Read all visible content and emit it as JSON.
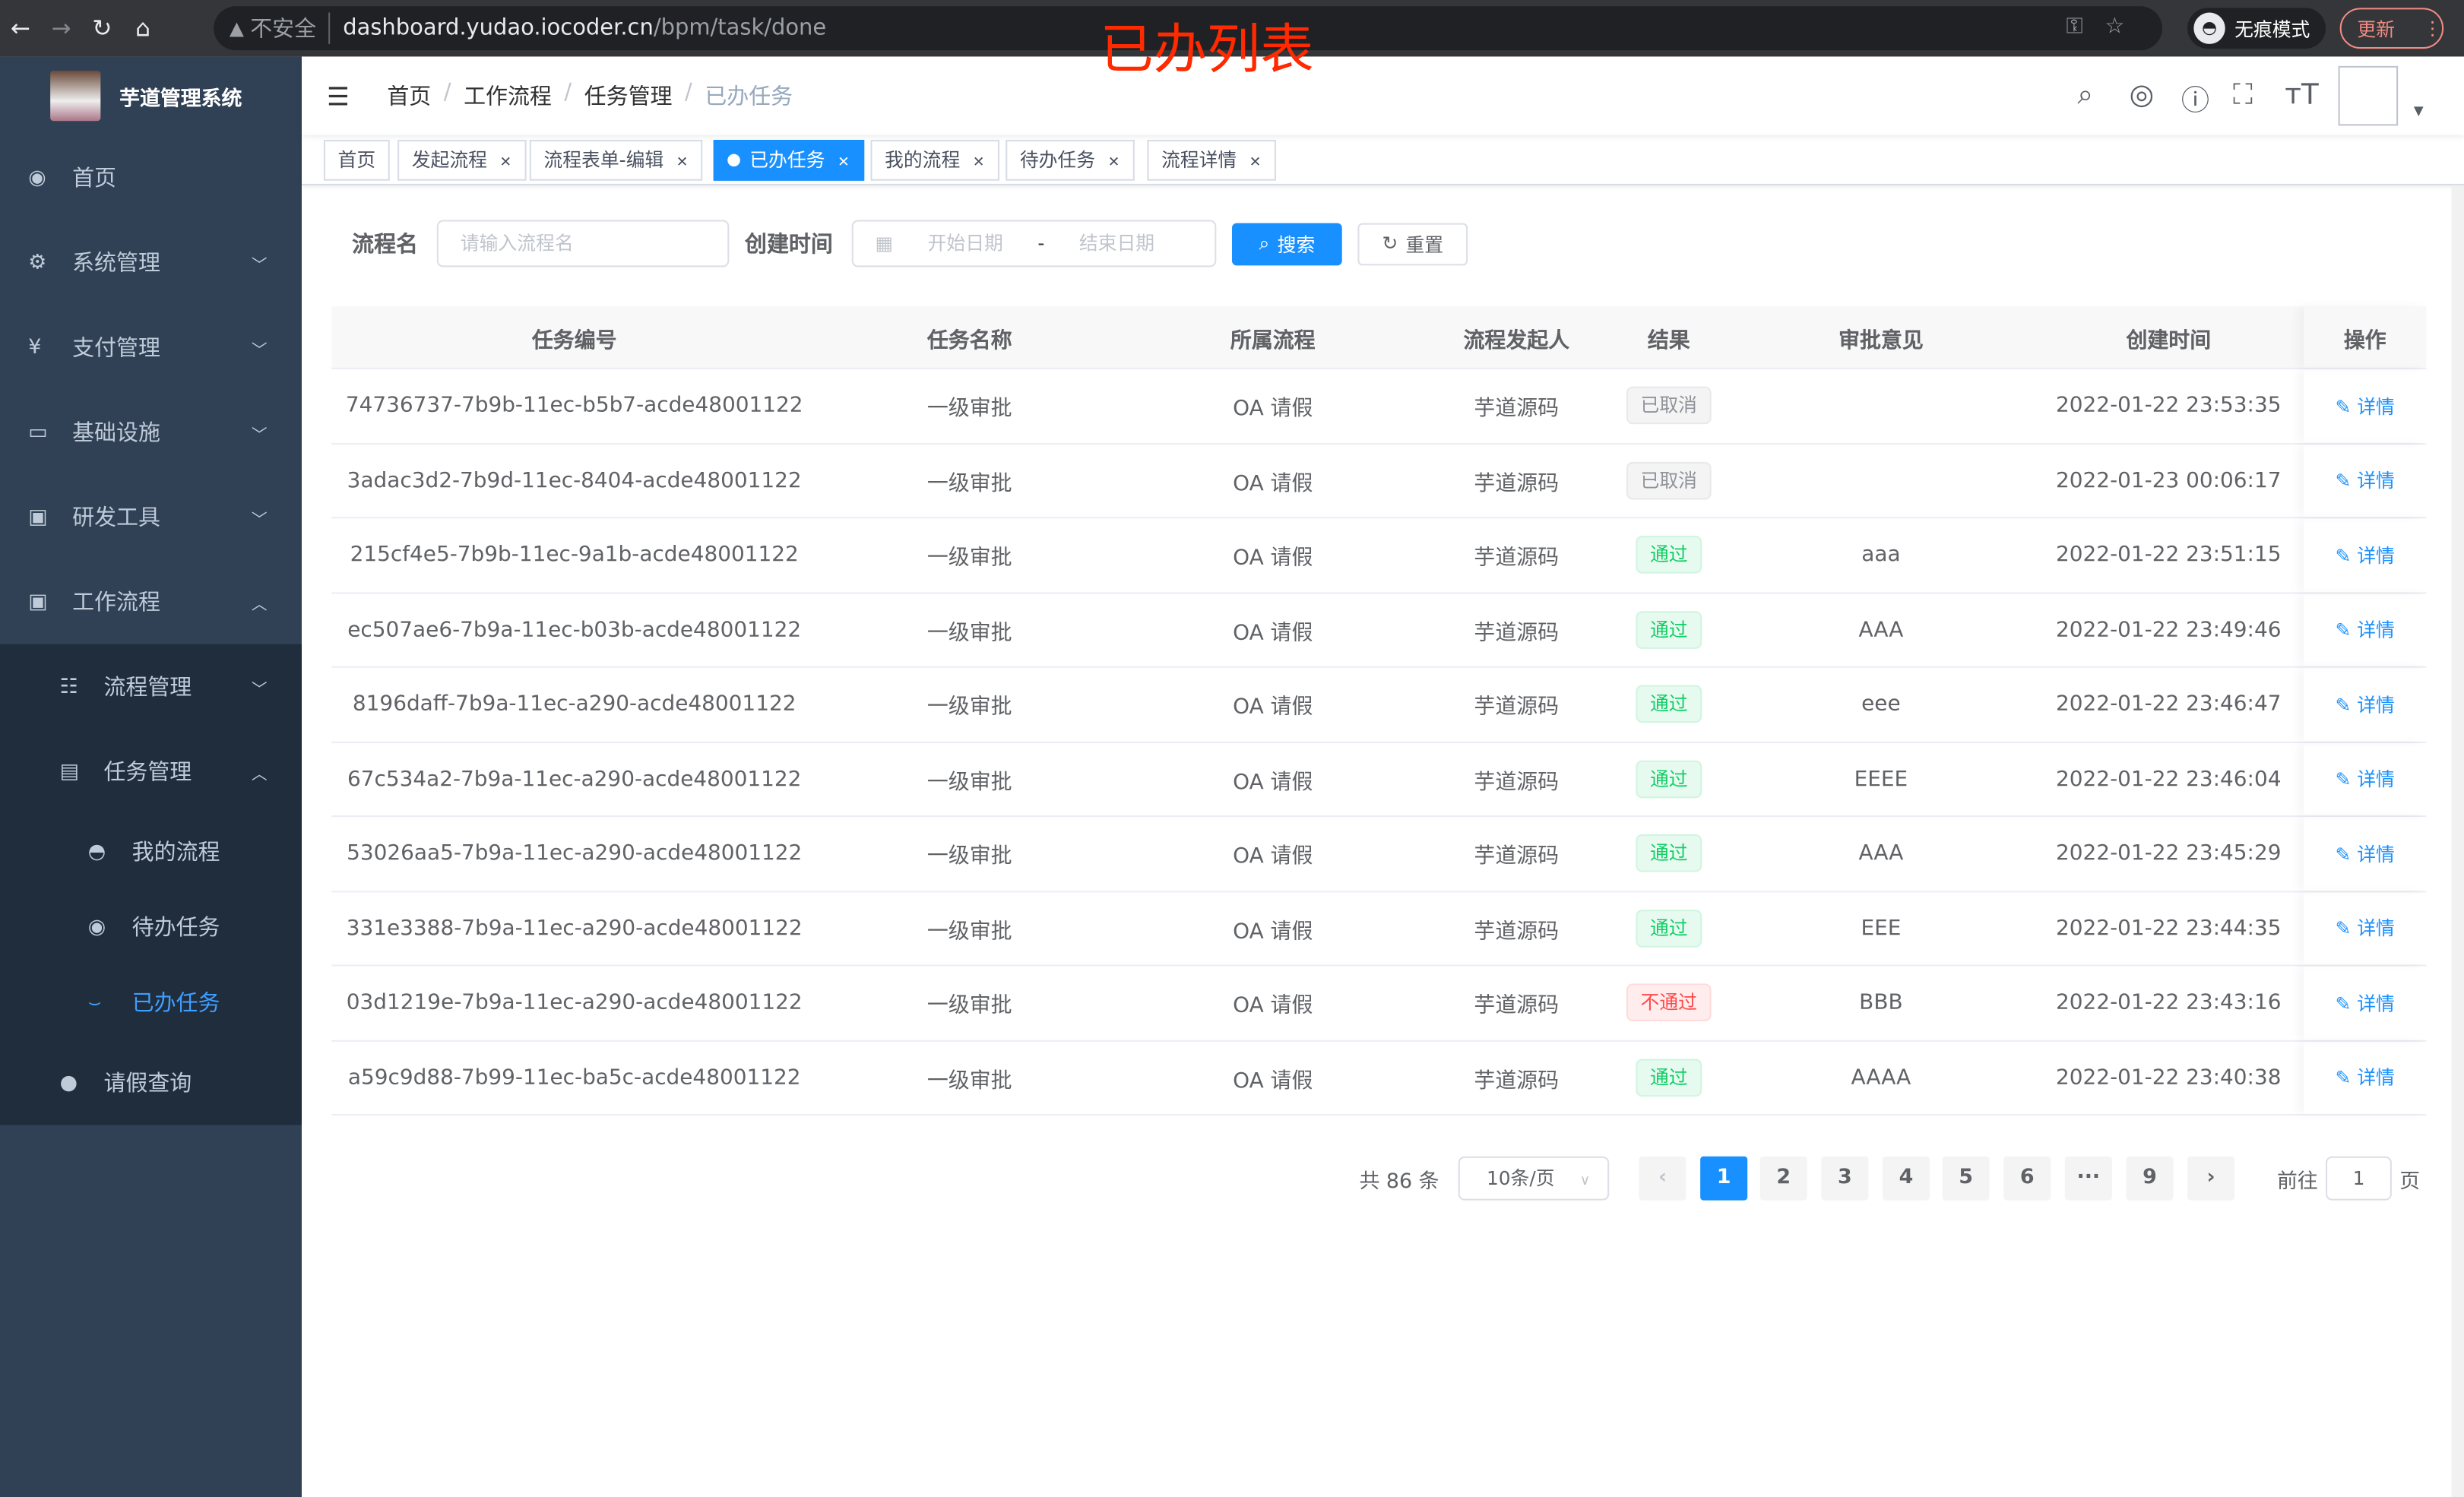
{
  "browser": {
    "insecure": "不安全",
    "url_host": "dashboard.yudao.iocoder.cn",
    "url_path": "/bpm/task/done",
    "incognito": "无痕模式",
    "update": "更新"
  },
  "overlay_title": "已办列表",
  "app": {
    "title": "芋道管理系统"
  },
  "sidebar": {
    "items": [
      {
        "label": "首页",
        "icon": "dashboard-icon"
      },
      {
        "label": "系统管理",
        "icon": "gear-icon"
      },
      {
        "label": "支付管理",
        "icon": "yen-icon"
      },
      {
        "label": "基础设施",
        "icon": "monitor-icon"
      },
      {
        "label": "研发工具",
        "icon": "toolbox-icon"
      },
      {
        "label": "工作流程",
        "icon": "toolbox-icon"
      }
    ],
    "workflow_sub": [
      {
        "label": "流程管理",
        "icon": "tree-list-icon"
      },
      {
        "label": "任务管理",
        "icon": "task-icon"
      }
    ],
    "task_sub": [
      {
        "label": "我的流程",
        "icon": "chat-icon"
      },
      {
        "label": "待办任务",
        "icon": "eye-icon"
      },
      {
        "label": "已办任务",
        "icon": "done-icon",
        "active": true
      }
    ],
    "leave": {
      "label": "请假查询",
      "icon": "user-icon"
    }
  },
  "breadcrumb": [
    "首页",
    "工作流程",
    "任务管理",
    "已办任务"
  ],
  "tags": [
    {
      "label": "首页"
    },
    {
      "label": "发起流程"
    },
    {
      "label": "流程表单-编辑"
    },
    {
      "label": "已办任务",
      "active": true
    },
    {
      "label": "我的流程"
    },
    {
      "label": "待办任务"
    },
    {
      "label": "流程详情"
    }
  ],
  "filter": {
    "name_label": "流程名",
    "name_placeholder": "请输入流程名",
    "time_label": "创建时间",
    "start_placeholder": "开始日期",
    "range_sep": "-",
    "end_placeholder": "结束日期",
    "search": "搜索",
    "reset": "重置"
  },
  "table": {
    "columns": [
      "任务编号",
      "任务名称",
      "所属流程",
      "流程发起人",
      "结果",
      "审批意见",
      "创建时间",
      "操作"
    ],
    "rows": [
      [
        "74736737-7b9b-11ec-b5b7-acde48001122",
        "一级审批",
        "OA 请假",
        "芋道源码",
        "已取消",
        "",
        "2022-01-22 23:53:35"
      ],
      [
        "3adac3d2-7b9d-11ec-8404-acde48001122",
        "一级审批",
        "OA 请假",
        "芋道源码",
        "已取消",
        "",
        "2022-01-23 00:06:17"
      ],
      [
        "215cf4e5-7b9b-11ec-9a1b-acde48001122",
        "一级审批",
        "OA 请假",
        "芋道源码",
        "通过",
        "aaa",
        "2022-01-22 23:51:15"
      ],
      [
        "ec507ae6-7b9a-11ec-b03b-acde48001122",
        "一级审批",
        "OA 请假",
        "芋道源码",
        "通过",
        "AAA",
        "2022-01-22 23:49:46"
      ],
      [
        "8196daff-7b9a-11ec-a290-acde48001122",
        "一级审批",
        "OA 请假",
        "芋道源码",
        "通过",
        "eee",
        "2022-01-22 23:46:47"
      ],
      [
        "67c534a2-7b9a-11ec-a290-acde48001122",
        "一级审批",
        "OA 请假",
        "芋道源码",
        "通过",
        "EEEE",
        "2022-01-22 23:46:04"
      ],
      [
        "53026aa5-7b9a-11ec-a290-acde48001122",
        "一级审批",
        "OA 请假",
        "芋道源码",
        "通过",
        "AAA",
        "2022-01-22 23:45:29"
      ],
      [
        "331e3388-7b9a-11ec-a290-acde48001122",
        "一级审批",
        "OA 请假",
        "芋道源码",
        "通过",
        "EEE",
        "2022-01-22 23:44:35"
      ],
      [
        "03d1219e-7b9a-11ec-a290-acde48001122",
        "一级审批",
        "OA 请假",
        "芋道源码",
        "不通过",
        "BBB",
        "2022-01-22 23:43:16"
      ],
      [
        "a59c9d88-7b99-11ec-ba5c-acde48001122",
        "一级审批",
        "OA 请假",
        "芋道源码",
        "通过",
        "AAAA",
        "2022-01-22 23:40:38"
      ]
    ],
    "action": "详情"
  },
  "result_colors": {
    "已取消": "#909399",
    "通过": "#13ce66",
    "不通过": "#ff4949"
  },
  "pagination": {
    "total": "共 86 条",
    "page_size": "10条/页",
    "pages": [
      "1",
      "2",
      "3",
      "4",
      "5",
      "6",
      "···",
      "9"
    ],
    "current": "1",
    "goto_label": "前往",
    "goto_value": "1",
    "page_suffix": "页"
  },
  "colors": {
    "accent": "#1890ff",
    "sidebar": "#304156"
  }
}
